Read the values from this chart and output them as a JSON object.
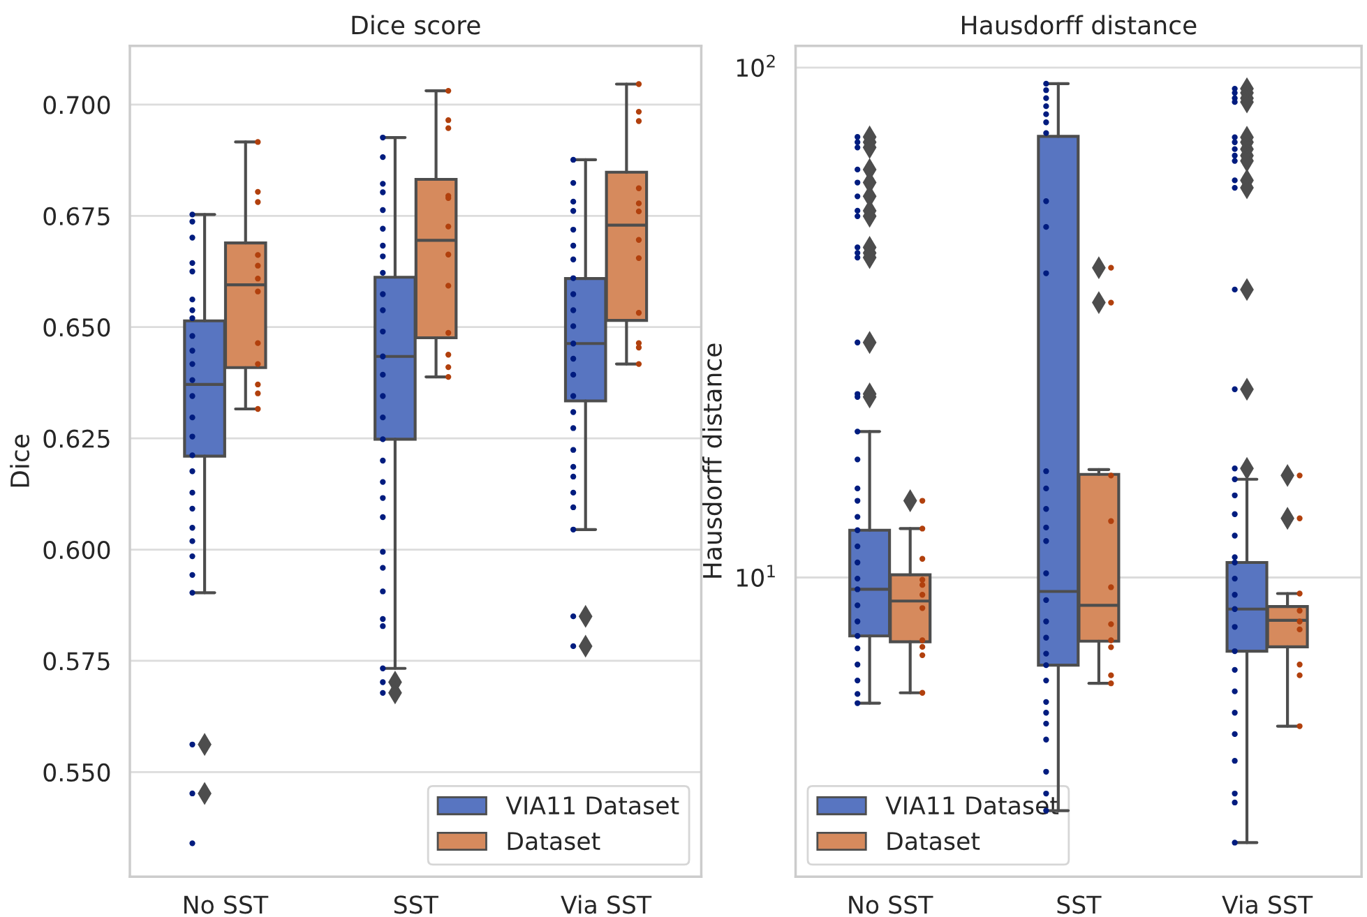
{
  "chart_data": [
    {
      "type": "box",
      "title": "Dice score",
      "ylabel": "Dice",
      "categories": [
        "No SST",
        "SST",
        "Via SST"
      ],
      "ylim": [
        0.5265,
        0.7132
      ],
      "yticks": [
        {
          "value": 0.55,
          "label": "0.550"
        },
        {
          "value": 0.575,
          "label": "0.575"
        },
        {
          "value": 0.6,
          "label": "0.600"
        },
        {
          "value": 0.625,
          "label": "0.625"
        },
        {
          "value": 0.65,
          "label": "0.650"
        },
        {
          "value": 0.675,
          "label": "0.675"
        },
        {
          "value": 0.7,
          "label": "0.700"
        }
      ],
      "grid": "y",
      "legend": "bottom right",
      "series": [
        {
          "name": "VIA11 Dataset",
          "color": "#5875c1",
          "boxes": [
            {
              "low": 0.5903,
              "q1": 0.621,
              "median": 0.6371,
              "q3": 0.6514,
              "high": 0.6753,
              "outliers": [
                0.5562,
                0.5452
              ]
            },
            {
              "low": 0.5733,
              "q1": 0.6248,
              "median": 0.6434,
              "q3": 0.6612,
              "high": 0.6926,
              "outliers": [
                0.5702,
                0.5678
              ]
            },
            {
              "low": 0.6045,
              "q1": 0.6334,
              "median": 0.6463,
              "q3": 0.6609,
              "high": 0.6876,
              "outliers": [
                0.585,
                0.5783
              ]
            }
          ]
        },
        {
          "name": "Dataset",
          "color": "#d68a5d",
          "boxes": [
            {
              "low": 0.6316,
              "q1": 0.6409,
              "median": 0.6595,
              "q3": 0.6689,
              "high": 0.6916
            },
            {
              "low": 0.6388,
              "q1": 0.6476,
              "median": 0.6695,
              "q3": 0.6832,
              "high": 0.7031
            },
            {
              "low": 0.6417,
              "q1": 0.6515,
              "median": 0.6729,
              "q3": 0.6848,
              "high": 0.7046
            }
          ]
        },
        {
          "type": "scatter",
          "marker": "circle",
          "color": "#001c7f",
          "x": [
            "No SST",
            "No SST",
            "No SST",
            "No SST",
            "No SST",
            "No SST",
            "No SST",
            "No SST",
            "No SST",
            "No SST",
            "No SST",
            "No SST",
            "No SST",
            "No SST",
            "No SST",
            "No SST",
            "No SST",
            "No SST",
            "No SST",
            "No SST",
            "No SST",
            "No SST",
            "No SST",
            "No SST",
            "No SST",
            "No SST",
            "No SST"
          ],
          "values": [
            0.6753,
            0.6737,
            0.6701,
            0.6644,
            0.6625,
            0.6562,
            0.6538,
            0.652,
            0.648,
            0.6447,
            0.6417,
            0.6381,
            0.6345,
            0.6297,
            0.6254,
            0.6212,
            0.6176,
            0.6128,
            0.6092,
            0.6049,
            0.6019,
            0.5985,
            0.5943,
            0.5903,
            0.5562,
            0.5452,
            0.534
          ]
        },
        {
          "type": "scatter",
          "marker": "circle",
          "color": "#b1400d",
          "x": [
            "No SST",
            "No SST",
            "No SST",
            "No SST",
            "No SST",
            "No SST",
            "No SST",
            "No SST",
            "No SST",
            "No SST",
            "No SST",
            "No SST"
          ],
          "values": [
            0.6916,
            0.6804,
            0.6781,
            0.6662,
            0.6638,
            0.6609,
            0.658,
            0.6464,
            0.6417,
            0.6371,
            0.6351,
            0.6316
          ]
        },
        {
          "type": "scatter",
          "marker": "circle",
          "color": "#001c7f",
          "x": [
            "SST",
            "SST",
            "SST",
            "SST",
            "SST",
            "SST",
            "SST",
            "SST",
            "SST",
            "SST",
            "SST",
            "SST",
            "SST",
            "SST",
            "SST",
            "SST",
            "SST",
            "SST",
            "SST",
            "SST",
            "SST",
            "SST",
            "SST",
            "SST",
            "SST",
            "SST",
            "SST",
            "SST",
            "SST"
          ],
          "values": [
            0.6926,
            0.6882,
            0.6822,
            0.6803,
            0.6763,
            0.6721,
            0.6683,
            0.6659,
            0.6622,
            0.6574,
            0.6538,
            0.649,
            0.6434,
            0.6393,
            0.6345,
            0.6297,
            0.6248,
            0.62,
            0.6152,
            0.6116,
            0.6073,
            0.5995,
            0.5959,
            0.5906,
            0.5844,
            0.5828,
            0.5733,
            0.5702,
            0.5678
          ]
        },
        {
          "type": "scatter",
          "marker": "circle",
          "color": "#b1400d",
          "x": [
            "SST",
            "SST",
            "SST",
            "SST",
            "SST",
            "SST",
            "SST",
            "SST",
            "SST",
            "SST",
            "SST",
            "SST"
          ],
          "values": [
            0.7031,
            0.6965,
            0.6947,
            0.6795,
            0.679,
            0.6726,
            0.6663,
            0.6593,
            0.6487,
            0.6438,
            0.641,
            0.6388
          ]
        },
        {
          "type": "scatter",
          "marker": "circle",
          "color": "#001c7f",
          "x": [
            "Via SST",
            "Via SST",
            "Via SST",
            "Via SST",
            "Via SST",
            "Via SST",
            "Via SST",
            "Via SST",
            "Via SST",
            "Via SST",
            "Via SST",
            "Via SST",
            "Via SST",
            "Via SST",
            "Via SST",
            "Via SST",
            "Via SST",
            "Via SST",
            "Via SST",
            "Via SST",
            "Via SST",
            "Via SST",
            "Via SST",
            "Via SST",
            "Via SST"
          ],
          "values": [
            0.6876,
            0.6824,
            0.6782,
            0.6761,
            0.6719,
            0.6683,
            0.6652,
            0.661,
            0.6574,
            0.6538,
            0.6502,
            0.6463,
            0.6429,
            0.6393,
            0.6345,
            0.6309,
            0.6273,
            0.6224,
            0.6186,
            0.6164,
            0.6128,
            0.6095,
            0.6045,
            0.585,
            0.5783
          ]
        },
        {
          "type": "scatter",
          "marker": "circle",
          "color": "#b1400d",
          "x": [
            "Via SST",
            "Via SST",
            "Via SST",
            "Via SST",
            "Via SST",
            "Via SST",
            "Via SST",
            "Via SST",
            "Via SST",
            "Via SST",
            "Via SST",
            "Via SST"
          ],
          "values": [
            0.7046,
            0.6984,
            0.6963,
            0.6812,
            0.6778,
            0.676,
            0.6696,
            0.6655,
            0.6532,
            0.6464,
            0.6454,
            0.6417
          ]
        }
      ]
    },
    {
      "type": "box",
      "title": "Hausdorff distance",
      "ylabel": "Hausdorff distance",
      "categories": [
        "No SST",
        "SST",
        "Via SST"
      ],
      "log": true,
      "ylim": [
        2.59,
        110.3
      ],
      "yticks": [
        {
          "value": 10,
          "label": "10$^{1}$"
        },
        {
          "value": 100,
          "label": "10$^{2}$"
        }
      ],
      "grid": "y",
      "legend": "bottom left",
      "series": [
        {
          "name": "VIA11 Dataset",
          "color": "#5875c1",
          "boxes": [
            {
              "low": 5.67,
              "q1": 7.68,
              "median": 9.48,
              "q3": 12.38,
              "high": 19.33,
              "outliers": [
                73.1,
                71.4,
                69.7,
                63.1,
                59.5,
                55.9,
                52.4,
                51.1,
                44.4,
                43.3,
                42.4,
                28.9,
                22.9,
                22.6
              ]
            },
            {
              "low": 3.49,
              "q1": 6.73,
              "median": 9.39,
              "q3": 73.3,
              "high": 92.98
            },
            {
              "low": 3.02,
              "q1": 7.17,
              "median": 8.67,
              "q3": 10.7,
              "high": 15.58,
              "outliers": [
                90.9,
                89.2,
                87.1,
                85.6,
                73.0,
                71.4,
                69.2,
                67.2,
                65.6,
                60.1,
                58.1,
                36.7,
                23.4,
                16.36
              ]
            }
          ]
        },
        {
          "name": "Dataset",
          "color": "#d68a5d",
          "boxes": [
            {
              "low": 5.94,
              "q1": 7.48,
              "median": 8.99,
              "q3": 10.12,
              "high": 12.47,
              "outliers": [
                14.14
              ]
            },
            {
              "low": 6.2,
              "q1": 7.5,
              "median": 8.82,
              "q3": 15.93,
              "high": 16.28,
              "outliers": [
                40.5,
                34.6
              ]
            },
            {
              "low": 5.11,
              "q1": 7.31,
              "median": 8.24,
              "q3": 8.77,
              "high": 9.3,
              "outliers": [
                15.85,
                13.06
              ]
            }
          ]
        },
        {
          "type": "scatter",
          "marker": "circle",
          "color": "#001c7f",
          "x": [
            "No SST",
            "No SST",
            "No SST",
            "No SST",
            "No SST",
            "No SST",
            "No SST",
            "No SST",
            "No SST",
            "No SST",
            "No SST",
            "No SST",
            "No SST",
            "No SST",
            "No SST",
            "No SST",
            "No SST",
            "No SST",
            "No SST",
            "No SST",
            "No SST",
            "No SST",
            "No SST",
            "No SST",
            "No SST",
            "No SST",
            "No SST",
            "No SST",
            "No SST",
            "No SST",
            "No SST",
            "No SST"
          ],
          "values": [
            73.1,
            71.4,
            69.7,
            63.1,
            59.5,
            55.9,
            52.4,
            51.1,
            44.4,
            43.3,
            42.4,
            28.9,
            22.9,
            22.6,
            19.33,
            17.04,
            14.95,
            14.14,
            13.15,
            12.38,
            11.51,
            10.7,
            9.95,
            9.48,
            8.82,
            8.2,
            7.68,
            7.26,
            6.75,
            6.28,
            5.91,
            5.67
          ]
        },
        {
          "type": "scatter",
          "marker": "circle",
          "color": "#b1400d",
          "x": [
            "No SST",
            "No SST",
            "No SST",
            "No SST",
            "No SST",
            "No SST",
            "No SST",
            "No SST",
            "No SST",
            "No SST",
            "No SST"
          ],
          "values": [
            14.14,
            12.47,
            10.88,
            9.9,
            9.67,
            9.25,
            8.71,
            7.53,
            7.31,
            7.04,
            5.94
          ]
        },
        {
          "type": "scatter",
          "marker": "circle",
          "color": "#001c7f",
          "x": [
            "SST",
            "SST",
            "SST",
            "SST",
            "SST",
            "SST",
            "SST",
            "SST",
            "SST",
            "SST",
            "SST",
            "SST",
            "SST",
            "SST",
            "SST",
            "SST",
            "SST",
            "SST",
            "SST",
            "SST",
            "SST",
            "SST",
            "SST",
            "SST",
            "SST",
            "SST",
            "SST",
            "SST",
            "SST"
          ],
          "values": [
            92.98,
            90.3,
            87.1,
            84.0,
            81.0,
            78.1,
            74.4,
            54.7,
            48.7,
            39.5,
            16.16,
            14.95,
            13.63,
            12.53,
            11.79,
            10.19,
            9.03,
            8.2,
            7.62,
            7.09,
            6.73,
            6.28,
            5.7,
            5.43,
            5.17,
            4.81,
            4.16,
            3.77,
            3.49
          ]
        },
        {
          "type": "scatter",
          "marker": "circle",
          "color": "#b1400d",
          "x": [
            "SST",
            "SST",
            "SST",
            "SST",
            "SST",
            "SST",
            "SST",
            "SST",
            "SST",
            "SST"
          ],
          "values": [
            40.5,
            34.6,
            15.85,
            12.9,
            9.57,
            8.1,
            7.53,
            7.3,
            6.43,
            6.2
          ]
        },
        {
          "type": "scatter",
          "marker": "circle",
          "color": "#001c7f",
          "x": [
            "Via SST",
            "Via SST",
            "Via SST",
            "Via SST",
            "Via SST",
            "Via SST",
            "Via SST",
            "Via SST",
            "Via SST",
            "Via SST",
            "Via SST",
            "Via SST",
            "Via SST",
            "Via SST",
            "Via SST",
            "Via SST",
            "Via SST",
            "Via SST",
            "Via SST",
            "Via SST",
            "Via SST",
            "Via SST",
            "Via SST",
            "Via SST",
            "Via SST",
            "Via SST",
            "Via SST",
            "Via SST",
            "Via SST",
            "Via SST",
            "Via SST",
            "Via SST",
            "Via SST"
          ],
          "values": [
            90.9,
            89.2,
            87.1,
            85.6,
            73.0,
            71.4,
            69.2,
            67.2,
            65.6,
            60.1,
            58.1,
            36.7,
            23.4,
            16.36,
            15.58,
            14.49,
            13.31,
            12.08,
            10.96,
            10.7,
            9.95,
            9.25,
            8.67,
            8.0,
            7.17,
            6.59,
            5.98,
            5.43,
            4.93,
            4.37,
            3.77,
            3.62,
            3.02
          ]
        },
        {
          "type": "scatter",
          "marker": "circle",
          "color": "#b1400d",
          "x": [
            "Via SST",
            "Via SST",
            "Via SST",
            "Via SST",
            "Via SST",
            "Via SST",
            "Via SST",
            "Via SST",
            "Via SST"
          ],
          "values": [
            15.85,
            13.06,
            9.3,
            8.61,
            8.2,
            7.91,
            6.75,
            6.43,
            5.11
          ]
        }
      ]
    }
  ]
}
